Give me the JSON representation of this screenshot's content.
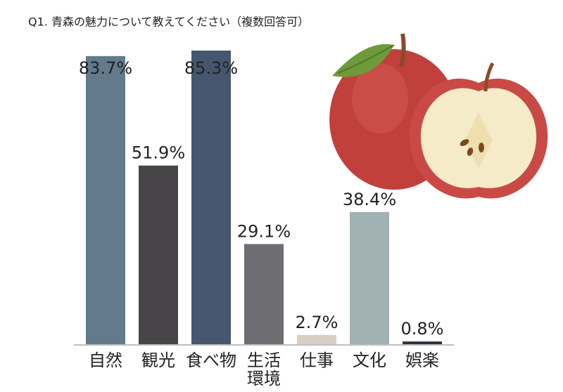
{
  "chart_data": {
    "type": "bar",
    "title": "Q1. 青森の魅力について教えてください（複数回答可）",
    "categories": [
      "自然",
      "観光",
      "食べ物",
      "生活環境",
      "仕事",
      "文化",
      "娯楽"
    ],
    "values": [
      83.7,
      51.9,
      85.3,
      29.1,
      2.7,
      38.4,
      0.8
    ],
    "value_labels": [
      "83.7%",
      "51.9%",
      "85.3%",
      "29.1%",
      "2.7%",
      "38.4%",
      "0.8%"
    ],
    "colors": [
      "#627a8c",
      "#474548",
      "#46566e",
      "#6e6e72",
      "#d7cfc6",
      "#a1b1b4",
      "#2c3544"
    ]
  }
}
